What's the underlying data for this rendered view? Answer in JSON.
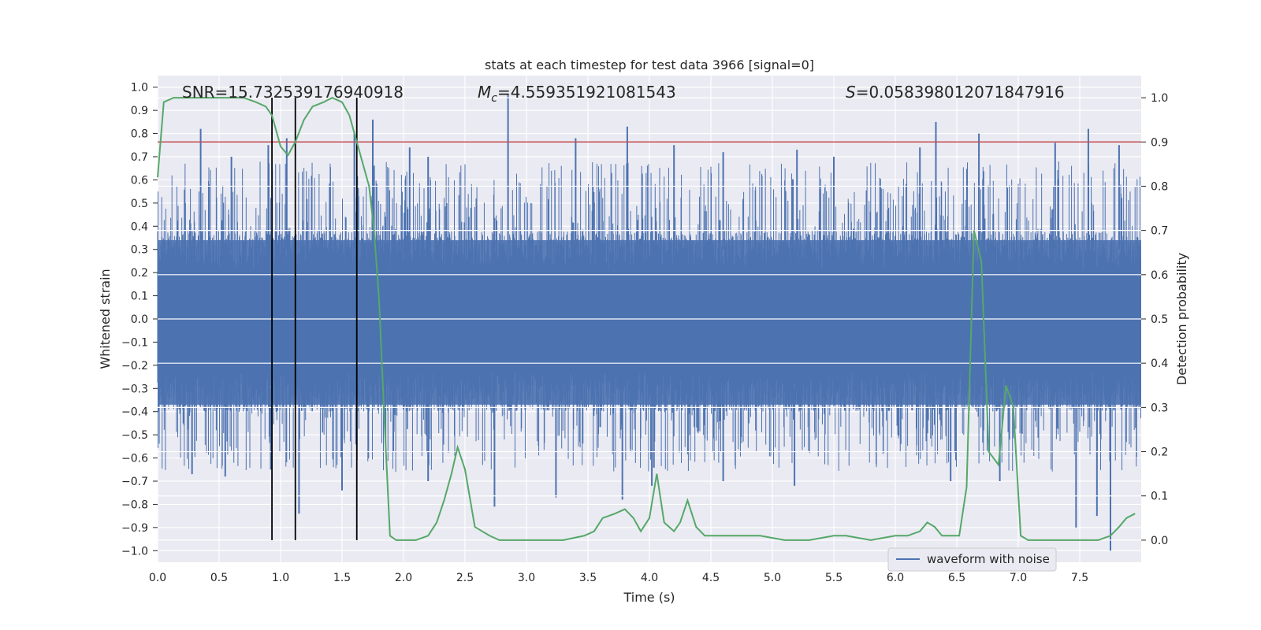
{
  "chart_data": {
    "type": "line",
    "title": "stats at each timestep for test data 3966 [signal=0]",
    "xlabel": "Time (s)",
    "ylabel": "Whitened strain",
    "y2label": "Detection probability",
    "xlim": [
      0.0,
      8.0
    ],
    "ylim": [
      -1.05,
      1.05
    ],
    "y2lim": [
      -0.05,
      1.05
    ],
    "xticks": [
      "0.0",
      "0.5",
      "1.0",
      "1.5",
      "2.0",
      "2.5",
      "3.0",
      "3.5",
      "4.0",
      "4.5",
      "5.0",
      "5.5",
      "6.0",
      "6.5",
      "7.0",
      "7.5"
    ],
    "yticks": [
      "1.0",
      "0.9",
      "0.8",
      "0.7",
      "0.6",
      "0.5",
      "0.4",
      "0.3",
      "0.2",
      "0.1",
      "0.0",
      "-0.1",
      "-0.2",
      "-0.3",
      "-0.4",
      "-0.5",
      "-0.6",
      "-0.7",
      "-0.8",
      "-0.9",
      "-1.0"
    ],
    "y2ticks": [
      "1.0",
      "0.9",
      "0.8",
      "0.7",
      "0.6",
      "0.5",
      "0.4",
      "0.3",
      "0.2",
      "0.1",
      "0.0"
    ],
    "annotations": {
      "snr": "SNR=15.732539176940918",
      "mc_symbol": "M",
      "mc_sub": "c",
      "mc_value": "=4.559351921081543",
      "s_symbol": "S",
      "s_value": "=0.058398012071847916"
    },
    "legend": {
      "entries": [
        "waveform with noise"
      ],
      "position": "lower-right"
    },
    "threshold_line": {
      "value": 0.9,
      "axis": "y2",
      "color": "#c44e52"
    },
    "vertical_markers": [
      0.93,
      1.12,
      1.62
    ],
    "waveform": {
      "name": "waveform with noise",
      "color": "#4c72b0",
      "duration_s": 8.0,
      "core_range": [
        -0.4,
        0.38
      ],
      "spikes": [
        {
          "t": 0.35,
          "v": 0.82
        },
        {
          "t": 0.6,
          "v": 0.7
        },
        {
          "t": 0.9,
          "v": 0.75
        },
        {
          "t": 1.05,
          "v": 0.78
        },
        {
          "t": 1.6,
          "v": 0.8
        },
        {
          "t": 1.75,
          "v": 0.86
        },
        {
          "t": 2.05,
          "v": 0.74
        },
        {
          "t": 2.2,
          "v": 0.7
        },
        {
          "t": 2.85,
          "v": 0.97
        },
        {
          "t": 3.4,
          "v": 0.78
        },
        {
          "t": 3.82,
          "v": 0.83
        },
        {
          "t": 4.2,
          "v": 0.75
        },
        {
          "t": 4.6,
          "v": 0.72
        },
        {
          "t": 5.2,
          "v": 0.73
        },
        {
          "t": 5.5,
          "v": 0.7
        },
        {
          "t": 6.2,
          "v": 0.74
        },
        {
          "t": 6.33,
          "v": 0.85
        },
        {
          "t": 6.68,
          "v": 0.8
        },
        {
          "t": 7.3,
          "v": 0.76
        },
        {
          "t": 7.57,
          "v": 0.82
        },
        {
          "t": 7.82,
          "v": 0.75
        },
        {
          "t": 0.28,
          "v": -0.67
        },
        {
          "t": 0.55,
          "v": -0.68
        },
        {
          "t": 0.92,
          "v": -0.65
        },
        {
          "t": 1.15,
          "v": -0.84
        },
        {
          "t": 1.5,
          "v": -0.74
        },
        {
          "t": 2.2,
          "v": -0.7
        },
        {
          "t": 2.74,
          "v": -0.81
        },
        {
          "t": 3.24,
          "v": -0.77
        },
        {
          "t": 3.78,
          "v": -0.78
        },
        {
          "t": 4.02,
          "v": -0.72
        },
        {
          "t": 4.6,
          "v": -0.7
        },
        {
          "t": 5.18,
          "v": -0.72
        },
        {
          "t": 6.45,
          "v": -0.7
        },
        {
          "t": 6.85,
          "v": -0.7
        },
        {
          "t": 7.47,
          "v": -0.9
        },
        {
          "t": 7.64,
          "v": -0.85
        },
        {
          "t": 7.75,
          "v": -1.0
        }
      ]
    },
    "detection_probability": {
      "name": "detection probability",
      "color": "#55a868",
      "x": [
        0.0,
        0.05,
        0.13,
        0.3,
        0.5,
        0.7,
        0.8,
        0.88,
        0.93,
        1.0,
        1.06,
        1.12,
        1.19,
        1.26,
        1.35,
        1.42,
        1.5,
        1.56,
        1.62,
        1.66,
        1.72,
        1.76,
        1.8,
        1.84,
        1.89,
        1.94,
        2.0,
        2.1,
        2.2,
        2.27,
        2.33,
        2.39,
        2.44,
        2.5,
        2.58,
        2.64,
        2.7,
        2.78,
        2.9,
        3.05,
        3.3,
        3.47,
        3.55,
        3.62,
        3.72,
        3.8,
        3.87,
        3.93,
        4.0,
        4.06,
        4.12,
        4.2,
        4.25,
        4.31,
        4.38,
        4.45,
        4.53,
        4.6,
        4.72,
        4.9,
        5.1,
        5.3,
        5.5,
        5.6,
        5.8,
        6.0,
        6.1,
        6.2,
        6.26,
        6.32,
        6.38,
        6.46,
        6.52,
        6.58,
        6.64,
        6.7,
        6.76,
        6.84,
        6.9,
        6.96,
        7.02,
        7.08,
        7.3,
        7.5,
        7.65,
        7.75,
        7.82,
        7.88,
        7.95
      ],
      "y": [
        0.82,
        0.99,
        1.0,
        1.0,
        1.0,
        1.0,
        0.99,
        0.98,
        0.96,
        0.89,
        0.87,
        0.9,
        0.95,
        0.98,
        0.99,
        1.0,
        0.99,
        0.96,
        0.9,
        0.86,
        0.8,
        0.7,
        0.55,
        0.3,
        0.01,
        0.0,
        0.0,
        0.0,
        0.01,
        0.04,
        0.09,
        0.15,
        0.21,
        0.16,
        0.03,
        0.02,
        0.01,
        0.0,
        0.0,
        0.0,
        0.0,
        0.01,
        0.02,
        0.05,
        0.06,
        0.07,
        0.05,
        0.02,
        0.05,
        0.15,
        0.04,
        0.02,
        0.04,
        0.09,
        0.03,
        0.01,
        0.01,
        0.01,
        0.01,
        0.01,
        0.0,
        0.0,
        0.01,
        0.01,
        0.0,
        0.01,
        0.01,
        0.02,
        0.04,
        0.03,
        0.01,
        0.01,
        0.01,
        0.12,
        0.7,
        0.63,
        0.2,
        0.17,
        0.35,
        0.3,
        0.01,
        0.0,
        0.0,
        0.0,
        0.0,
        0.01,
        0.03,
        0.05,
        0.06
      ]
    }
  }
}
